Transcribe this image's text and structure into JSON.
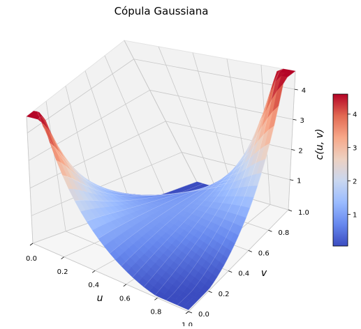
{
  "chart_data": {
    "type": "surface3d",
    "title": "Cópula Gaussiana",
    "xlabel": "u",
    "ylabel": "v",
    "zlabel": "c(u, v)",
    "x_ticks": [
      "0.0",
      "0.2",
      "0.4",
      "0.6",
      "0.8",
      "1.0"
    ],
    "y_ticks": [
      "0.0",
      "0.2",
      "0.4",
      "0.6",
      "0.8",
      "1.0"
    ],
    "z_ticks": [
      "1",
      "2",
      "3",
      "4"
    ],
    "xlim": [
      0,
      1
    ],
    "ylim": [
      0,
      1
    ],
    "zlim": [
      0,
      4.6
    ],
    "colormap": "coolwarm",
    "colorbar": {
      "range": [
        0.05,
        4.6
      ],
      "ticks": [
        "1",
        "2",
        "3",
        "4"
      ],
      "colors": [
        "#3b4cc0",
        "#6788ee",
        "#9abbff",
        "#c9d7f0",
        "#edd1c2",
        "#f7a889",
        "#e26952",
        "#b40426"
      ]
    },
    "grid": true,
    "surface_samples": {
      "u": [
        0.0,
        0.5,
        1.0
      ],
      "v": [
        0.0,
        0.5,
        1.0
      ],
      "values": [
        [
          4.6,
          0.9,
          0.05
        ],
        [
          0.9,
          1.15,
          0.9
        ],
        [
          0.05,
          0.9,
          4.6
        ]
      ]
    },
    "pane_color": "#f2f2f2",
    "grid_color": "#c8c8c8"
  }
}
